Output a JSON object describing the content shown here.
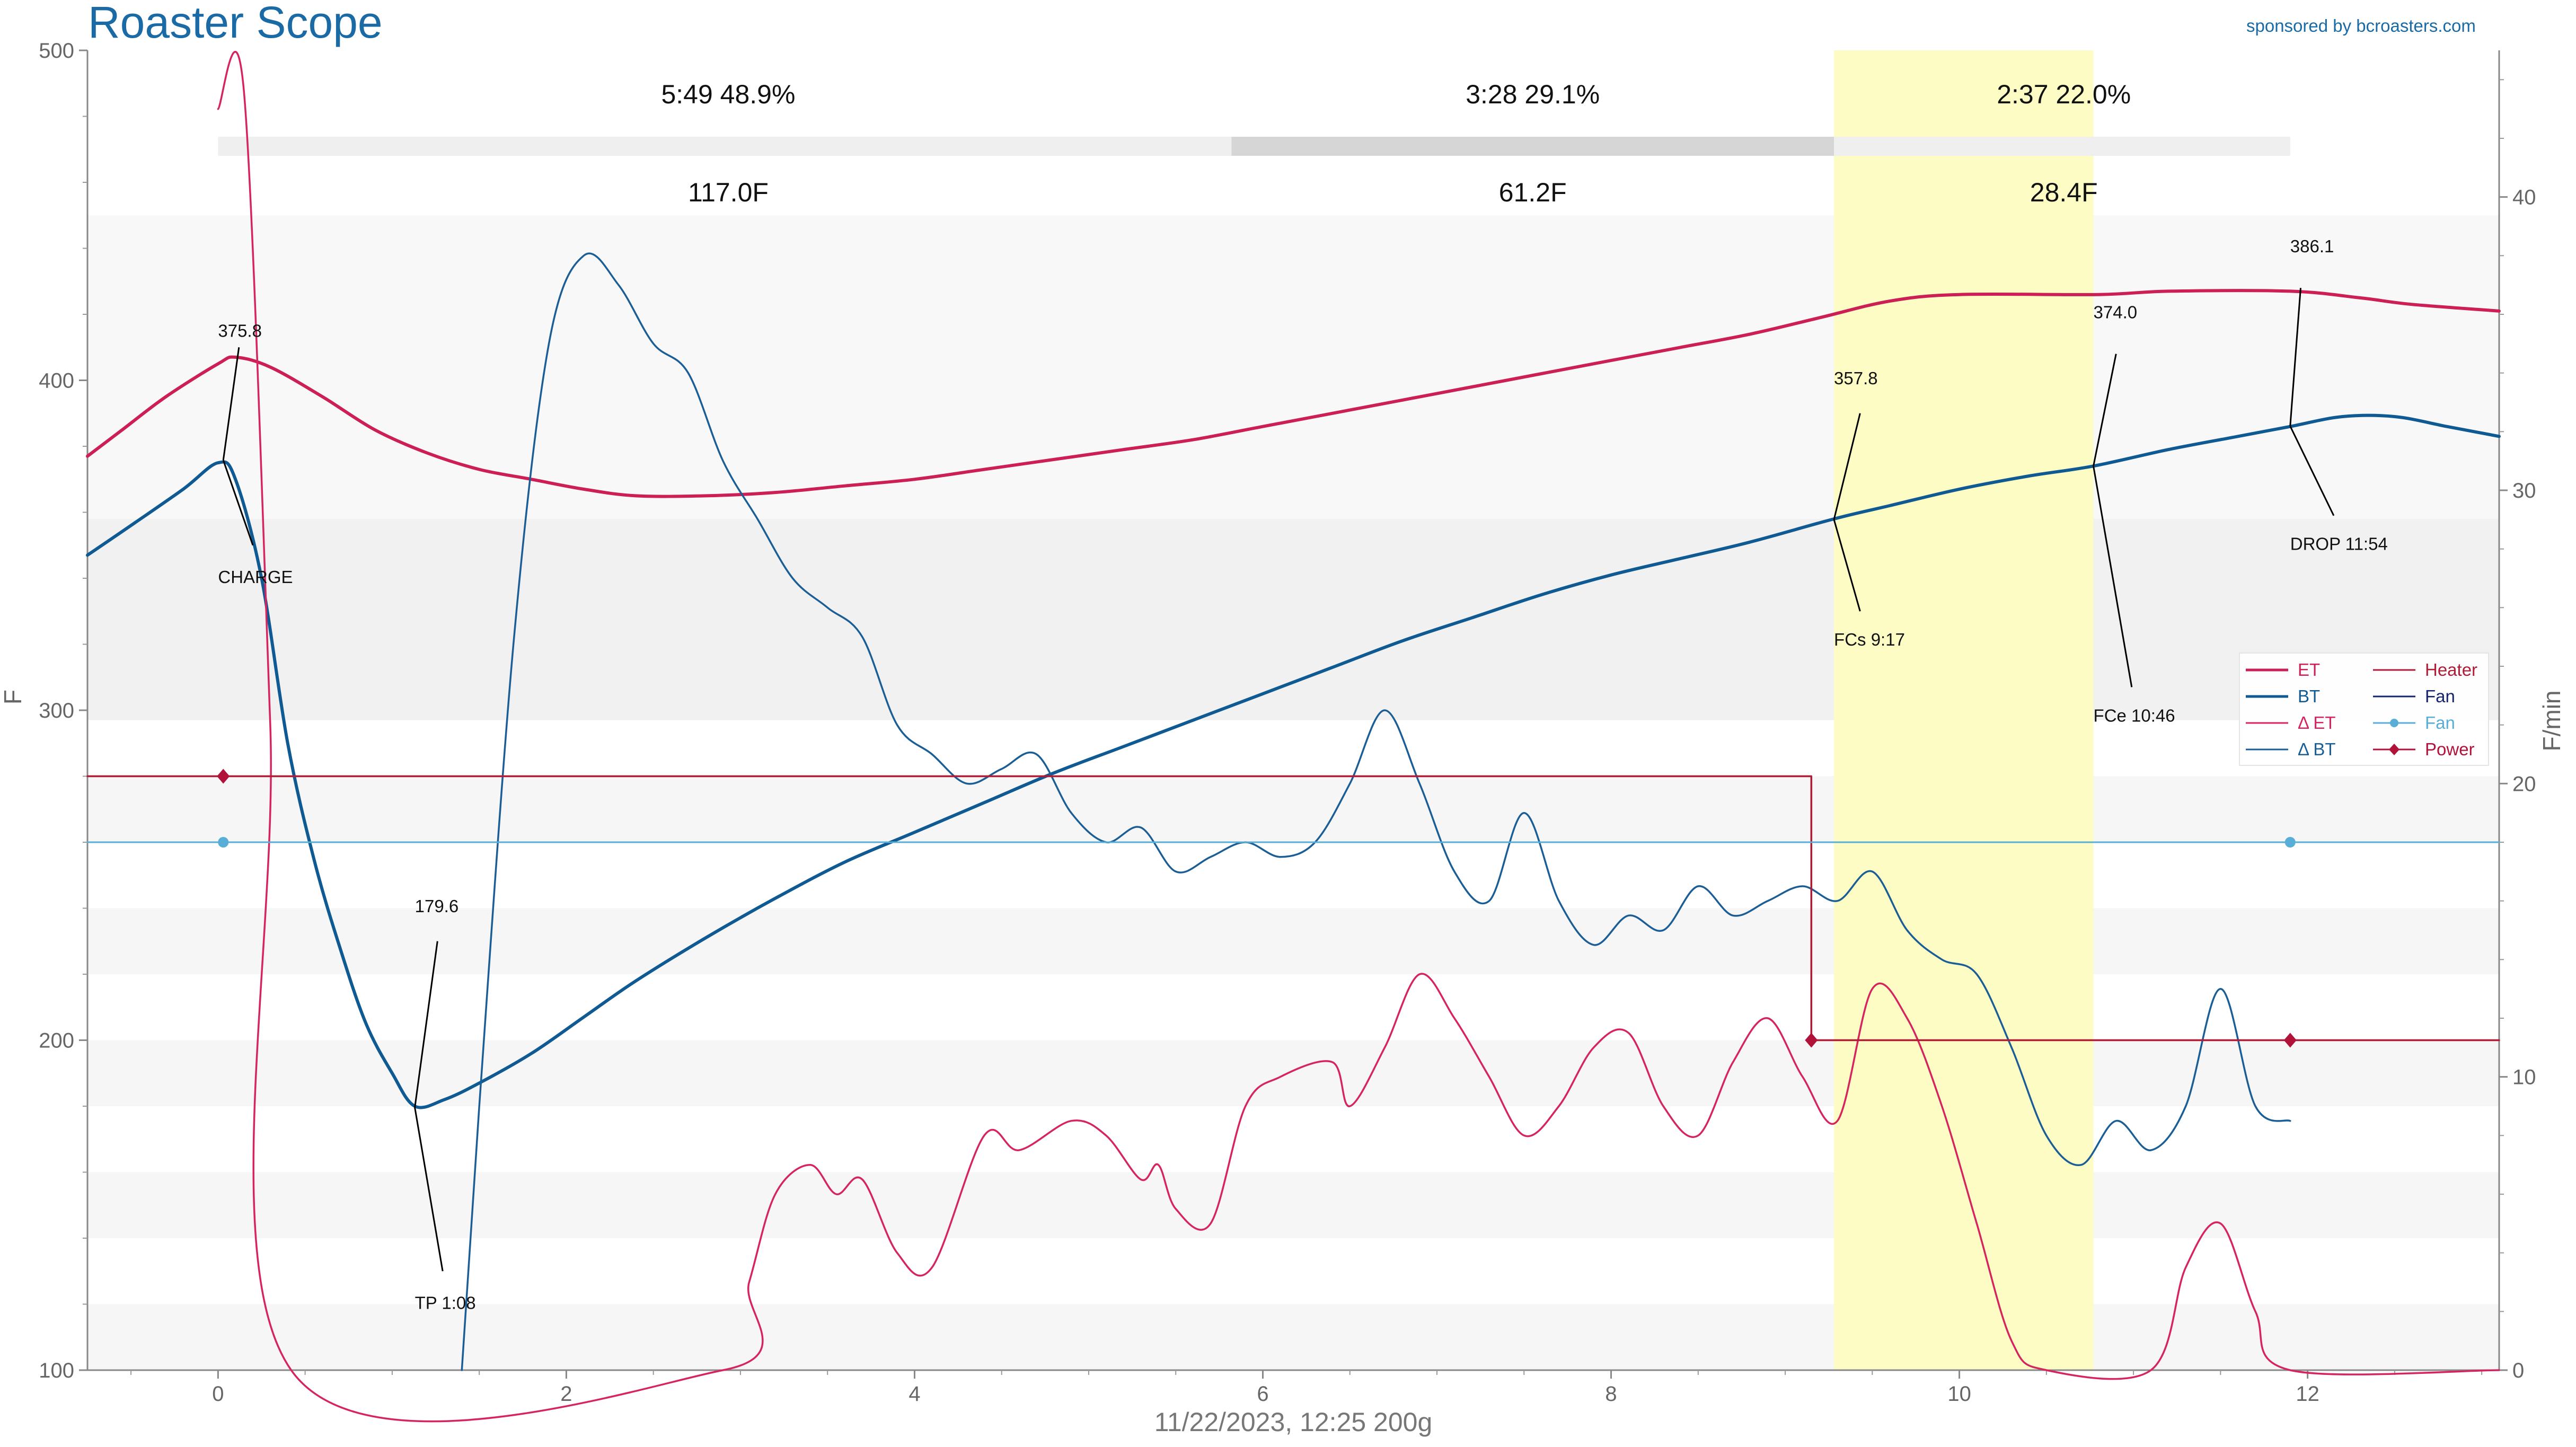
{
  "app_title": "Roaster Scope",
  "sponsor": "sponsored by bcroasters.com",
  "footer": "11/22/2023, 12:25   200g",
  "colors": {
    "et": "#cc1f55",
    "bt": "#0f5a92",
    "delta_et": "#d6245f",
    "delta_bt": "#1b5e96",
    "heater": "#b01c36",
    "fan_dark": "#14246e",
    "fan": "#58aed6",
    "power": "#b0123a",
    "highlight": "#fcfcc4"
  },
  "phases": [
    {
      "time": "5:49",
      "pct": "48.9%",
      "delta": "117.0F"
    },
    {
      "time": "3:28",
      "pct": "29.1%",
      "delta": "61.2F"
    },
    {
      "time": "2:37",
      "pct": "22.0%",
      "delta": "28.4F"
    }
  ],
  "chart_data": {
    "type": "line",
    "xlabel": "",
    "ylabel": "F",
    "y2label": "F/min",
    "xlim": [
      -0.75,
      13.1
    ],
    "ylim": [
      100,
      500
    ],
    "y2lim": [
      0,
      45
    ],
    "x_ticks": [
      "0",
      "2",
      "4",
      "6",
      "8",
      "10",
      "12"
    ],
    "y_ticks": [
      "100",
      "200",
      "300",
      "400",
      "500"
    ],
    "y2_ticks": [
      "0",
      "10",
      "20",
      "30",
      "40"
    ],
    "grid": "horizontal bands",
    "legend_placement": "right",
    "legend": [
      {
        "label": "ET",
        "color": "#cc1f55",
        "marker": ""
      },
      {
        "label": "BT",
        "color": "#0f5a92",
        "marker": ""
      },
      {
        "label": "Δ ET",
        "color": "#d6245f",
        "marker": ""
      },
      {
        "label": "Δ BT",
        "color": "#1b5e96",
        "marker": ""
      },
      {
        "label": "Heater",
        "color": "#b01c36",
        "marker": ""
      },
      {
        "label": "Fan",
        "color": "#14246e",
        "marker": ""
      },
      {
        "label": "Fan",
        "color": "#58aed6",
        "marker": "circle"
      },
      {
        "label": "Power",
        "color": "#b0123a",
        "marker": "diamond"
      }
    ],
    "highlight_x": [
      9.28,
      10.77
    ],
    "series": [
      {
        "name": "ET",
        "axis": "y",
        "points": [
          [
            -0.75,
            377
          ],
          [
            -0.55,
            385
          ],
          [
            -0.3,
            395
          ],
          [
            0,
            405
          ],
          [
            0.1,
            407
          ],
          [
            0.3,
            404
          ],
          [
            0.6,
            395
          ],
          [
            0.9,
            385
          ],
          [
            1.2,
            378
          ],
          [
            1.5,
            373
          ],
          [
            1.8,
            370
          ],
          [
            2.1,
            367
          ],
          [
            2.4,
            365
          ],
          [
            2.8,
            365
          ],
          [
            3.2,
            366
          ],
          [
            3.6,
            368
          ],
          [
            4.0,
            370
          ],
          [
            4.4,
            373
          ],
          [
            4.8,
            376
          ],
          [
            5.2,
            379
          ],
          [
            5.6,
            382
          ],
          [
            6.0,
            386
          ],
          [
            6.4,
            390
          ],
          [
            6.8,
            394
          ],
          [
            7.2,
            398
          ],
          [
            7.6,
            402
          ],
          [
            8.0,
            406
          ],
          [
            8.4,
            410
          ],
          [
            8.8,
            414
          ],
          [
            9.2,
            419
          ],
          [
            9.6,
            424
          ],
          [
            10.0,
            426
          ],
          [
            10.8,
            426
          ],
          [
            11.2,
            427
          ],
          [
            11.9,
            427
          ],
          [
            12.3,
            425
          ],
          [
            12.6,
            423
          ],
          [
            13.1,
            421
          ]
        ]
      },
      {
        "name": "BT",
        "axis": "y",
        "points": [
          [
            -0.75,
            347
          ],
          [
            -0.5,
            356
          ],
          [
            -0.2,
            367
          ],
          [
            0,
            375
          ],
          [
            0.1,
            370
          ],
          [
            0.25,
            340
          ],
          [
            0.4,
            290
          ],
          [
            0.55,
            255
          ],
          [
            0.7,
            228
          ],
          [
            0.85,
            205
          ],
          [
            1.0,
            190
          ],
          [
            1.13,
            180
          ],
          [
            1.3,
            182
          ],
          [
            1.5,
            187
          ],
          [
            1.8,
            196
          ],
          [
            2.1,
            207
          ],
          [
            2.4,
            218
          ],
          [
            2.8,
            231
          ],
          [
            3.2,
            243
          ],
          [
            3.6,
            254
          ],
          [
            4.0,
            263
          ],
          [
            4.4,
            272
          ],
          [
            4.8,
            281
          ],
          [
            5.2,
            289
          ],
          [
            5.6,
            297
          ],
          [
            6.0,
            305
          ],
          [
            6.4,
            313
          ],
          [
            6.8,
            321
          ],
          [
            7.2,
            328
          ],
          [
            7.6,
            335
          ],
          [
            8.0,
            341
          ],
          [
            8.4,
            346
          ],
          [
            8.8,
            351
          ],
          [
            9.28,
            358
          ],
          [
            9.6,
            362
          ],
          [
            10.0,
            367
          ],
          [
            10.4,
            371
          ],
          [
            10.77,
            374
          ],
          [
            11.2,
            379
          ],
          [
            11.6,
            383
          ],
          [
            11.9,
            386
          ],
          [
            12.2,
            389
          ],
          [
            12.5,
            389
          ],
          [
            12.8,
            386
          ],
          [
            13.1,
            383
          ]
        ]
      },
      {
        "name": "Δ ET",
        "axis": "y2",
        "points": [
          [
            0.0,
            43
          ],
          [
            0.15,
            43.5
          ],
          [
            0.3,
            22
          ],
          [
            0.42,
            0
          ],
          [
            2.9,
            0
          ],
          [
            3.05,
            3
          ],
          [
            3.2,
            6
          ],
          [
            3.4,
            7
          ],
          [
            3.55,
            6
          ],
          [
            3.7,
            6.5
          ],
          [
            3.9,
            4
          ],
          [
            4.1,
            3.5
          ],
          [
            4.4,
            8
          ],
          [
            4.6,
            7.5
          ],
          [
            4.9,
            8.5
          ],
          [
            5.1,
            8
          ],
          [
            5.3,
            6.5
          ],
          [
            5.4,
            7
          ],
          [
            5.5,
            5.5
          ],
          [
            5.7,
            5
          ],
          [
            5.9,
            9
          ],
          [
            6.1,
            10
          ],
          [
            6.4,
            10.5
          ],
          [
            6.5,
            9
          ],
          [
            6.7,
            11
          ],
          [
            6.9,
            13.5
          ],
          [
            7.1,
            12
          ],
          [
            7.3,
            10
          ],
          [
            7.5,
            8
          ],
          [
            7.7,
            9
          ],
          [
            7.9,
            11
          ],
          [
            8.1,
            11.5
          ],
          [
            8.3,
            9
          ],
          [
            8.5,
            8
          ],
          [
            8.7,
            10.5
          ],
          [
            8.9,
            12
          ],
          [
            9.1,
            10
          ],
          [
            9.3,
            8.5
          ],
          [
            9.5,
            13
          ],
          [
            9.7,
            12
          ],
          [
            9.9,
            9
          ],
          [
            10.1,
            5
          ],
          [
            10.3,
            1
          ],
          [
            10.5,
            0
          ],
          [
            11.1,
            0
          ],
          [
            11.3,
            3.5
          ],
          [
            11.5,
            5
          ],
          [
            11.7,
            2
          ],
          [
            11.9,
            0
          ],
          [
            13.1,
            0
          ]
        ]
      },
      {
        "name": "Δ BT",
        "axis": "y2",
        "points": [
          [
            1.4,
            0
          ],
          [
            1.5,
            9
          ],
          [
            1.7,
            25
          ],
          [
            1.9,
            35
          ],
          [
            2.1,
            38
          ],
          [
            2.3,
            37
          ],
          [
            2.5,
            35
          ],
          [
            2.7,
            34
          ],
          [
            2.9,
            31
          ],
          [
            3.1,
            29
          ],
          [
            3.3,
            27
          ],
          [
            3.5,
            26
          ],
          [
            3.7,
            25
          ],
          [
            3.9,
            22
          ],
          [
            4.1,
            21
          ],
          [
            4.3,
            20
          ],
          [
            4.5,
            20.5
          ],
          [
            4.7,
            21
          ],
          [
            4.9,
            19
          ],
          [
            5.1,
            18
          ],
          [
            5.3,
            18.5
          ],
          [
            5.5,
            17
          ],
          [
            5.7,
            17.5
          ],
          [
            5.9,
            18
          ],
          [
            6.1,
            17.5
          ],
          [
            6.3,
            18
          ],
          [
            6.5,
            20
          ],
          [
            6.7,
            22.5
          ],
          [
            6.9,
            20
          ],
          [
            7.1,
            17
          ],
          [
            7.3,
            16
          ],
          [
            7.5,
            19
          ],
          [
            7.7,
            16
          ],
          [
            7.9,
            14.5
          ],
          [
            8.1,
            15.5
          ],
          [
            8.3,
            15
          ],
          [
            8.5,
            16.5
          ],
          [
            8.7,
            15.5
          ],
          [
            8.9,
            16
          ],
          [
            9.1,
            16.5
          ],
          [
            9.3,
            16
          ],
          [
            9.5,
            17
          ],
          [
            9.7,
            15
          ],
          [
            9.9,
            14
          ],
          [
            10.1,
            13.5
          ],
          [
            10.3,
            11
          ],
          [
            10.5,
            8
          ],
          [
            10.7,
            7
          ],
          [
            10.9,
            8.5
          ],
          [
            11.1,
            7.5
          ],
          [
            11.3,
            9
          ],
          [
            11.5,
            13
          ],
          [
            11.7,
            9
          ],
          [
            11.9,
            8.5
          ]
        ]
      },
      {
        "name": "Heater",
        "axis": "y",
        "points": [
          [
            -0.75,
            280
          ],
          [
            9.15,
            280
          ],
          [
            9.15,
            200
          ],
          [
            13.1,
            200
          ]
        ]
      },
      {
        "name": "Fan",
        "axis": "y",
        "points": [
          [
            -0.75,
            260
          ],
          [
            13.1,
            260
          ]
        ]
      },
      {
        "name": "Fan",
        "axis": "y",
        "points": [
          [
            0.03,
            260
          ],
          [
            11.9,
            260
          ]
        ],
        "markers": "circle"
      },
      {
        "name": "Power",
        "axis": "y",
        "points": [
          [
            0.03,
            280
          ],
          [
            9.15,
            200
          ],
          [
            11.9,
            200
          ]
        ],
        "markers": "diamond"
      }
    ],
    "annotations": [
      {
        "label": "375.8",
        "x": 0.03,
        "y": 375.8,
        "dx": 0.0,
        "dy": 410,
        "anchor": "start"
      },
      {
        "label": "CHARGE",
        "x": 0.03,
        "y": 375.8,
        "dx": 0.0,
        "dy": 345,
        "anchor": "start"
      },
      {
        "label": "179.6",
        "x": 1.13,
        "y": 179.6,
        "dx": 1.13,
        "dy": 234,
        "anchor": "start"
      },
      {
        "label": "TP 1:08",
        "x": 1.13,
        "y": 179.6,
        "dx": 1.13,
        "dy": 125,
        "anchor": "start"
      },
      {
        "label": "357.8",
        "x": 9.28,
        "y": 357.8,
        "dx": 9.28,
        "dy": 394,
        "anchor": "start"
      },
      {
        "label": "FCs 9:17",
        "x": 9.28,
        "y": 357.8,
        "dx": 9.28,
        "dy": 326,
        "anchor": "start"
      },
      {
        "label": "374.0",
        "x": 10.77,
        "y": 374.0,
        "dx": 10.77,
        "dy": 414,
        "anchor": "start"
      },
      {
        "label": "FCe 10:46",
        "x": 10.77,
        "y": 374.0,
        "dx": 10.77,
        "dy": 303,
        "anchor": "start"
      },
      {
        "label": "386.1",
        "x": 11.9,
        "y": 386.1,
        "dx": 11.9,
        "dy": 434,
        "anchor": "start"
      },
      {
        "label": "DROP 11:54",
        "x": 11.9,
        "y": 386.1,
        "dx": 11.9,
        "dy": 355,
        "anchor": "start"
      }
    ]
  }
}
